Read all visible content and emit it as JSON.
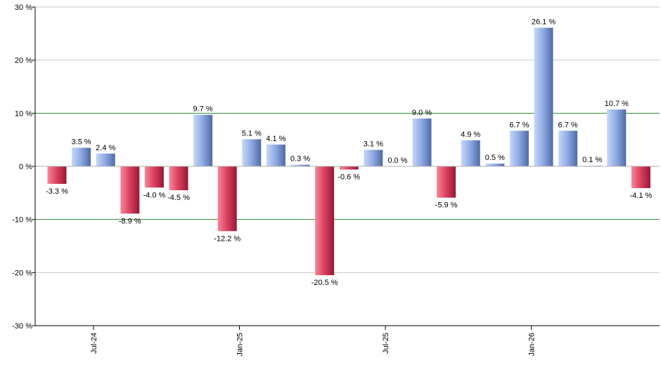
{
  "chart_data": {
    "type": "bar",
    "title": "",
    "xlabel": "",
    "ylabel": "",
    "ylim": [
      -30,
      30
    ],
    "y_ticks": [
      -30,
      -20,
      -10,
      0,
      10,
      20,
      30
    ],
    "y_tick_labels": [
      "-30 %",
      "-20 %",
      "-10 %",
      "0 %",
      "10 %",
      "20 %",
      "30 %"
    ],
    "x_tick_labels": [
      "Jul-24",
      "Jan-25",
      "Jul-25",
      "Jan-26"
    ],
    "x_tick_bar_index": [
      2,
      8,
      14,
      20
    ],
    "reference_lines": [
      10,
      -10
    ],
    "values": [
      -3.3,
      3.5,
      2.4,
      -8.9,
      -4.0,
      -4.5,
      9.7,
      -12.2,
      5.1,
      4.1,
      0.3,
      -20.5,
      -0.6,
      3.1,
      0.0,
      9.0,
      -5.9,
      4.9,
      0.5,
      6.7,
      26.1,
      6.7,
      0.1,
      10.7,
      -4.1
    ],
    "labels": [
      "-3.3 %",
      "3.5 %",
      "2.4 %",
      "-8.9 %",
      "-4.0 %",
      "-4.5 %",
      "9.7 %",
      "-12.2 %",
      "5.1 %",
      "4.1 %",
      "0.3 %",
      "-20.5 %",
      "-0.6 %",
      "3.1 %",
      "0.0 %",
      "9.0 %",
      "-5.9 %",
      "4.9 %",
      "0.5 %",
      "6.7 %",
      "26.1 %",
      "6.7 %",
      "0.1 %",
      "10.7 %",
      "-4.1 %"
    ],
    "grid": true,
    "colors": {
      "positive_light": "#b4c8f0",
      "positive_dark": "#5a78b4",
      "negative_light": "#f0788c",
      "negative_dark": "#b41e3c",
      "reference_line": "#2e8b2e",
      "grid": "#c8c8c8",
      "axis": "#000000"
    }
  }
}
